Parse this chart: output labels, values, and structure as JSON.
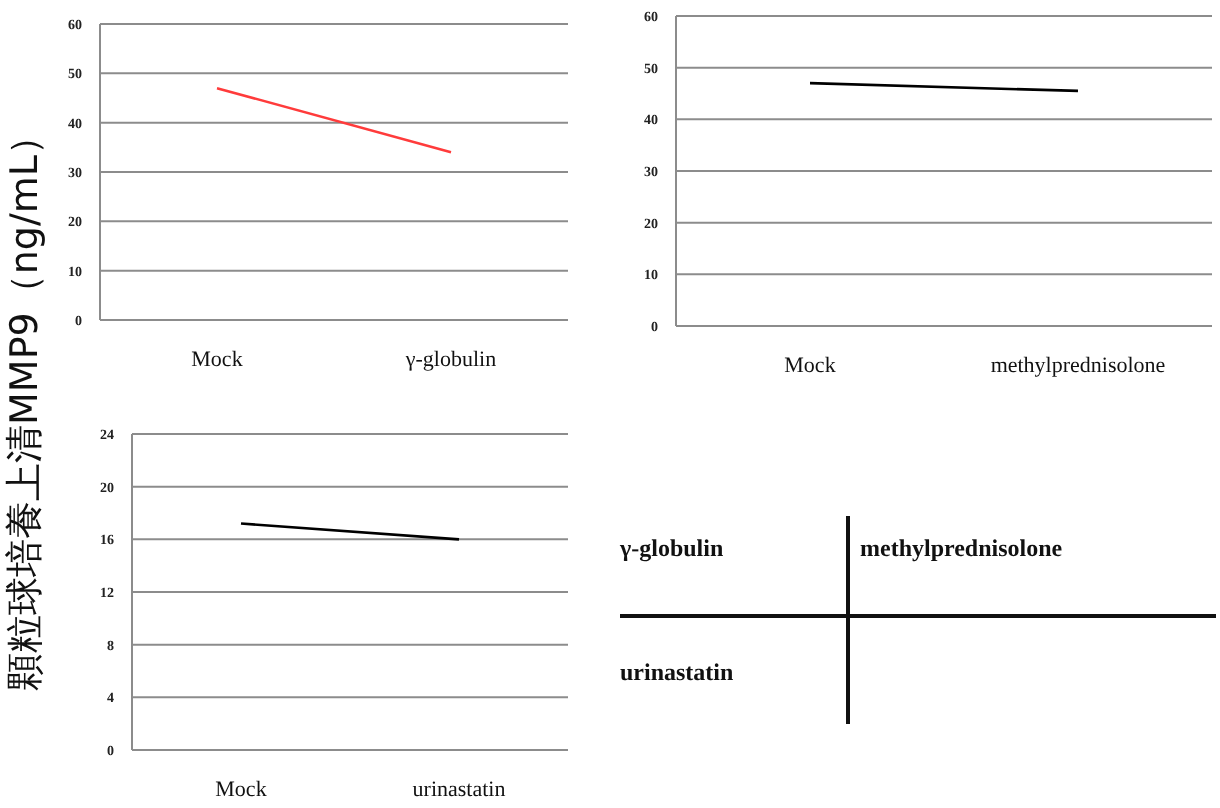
{
  "chart_data": [
    {
      "type": "line",
      "ylabel": "顆粒球培養上清MMP9（ng/mL）",
      "categories": [
        "Mock",
        "γ-globulin"
      ],
      "series": [
        {
          "color": "#ff3b3b",
          "values": [
            47,
            34
          ]
        }
      ],
      "ylim": [
        0,
        60
      ],
      "yticks": [
        0,
        10,
        20,
        30,
        40,
        50,
        60
      ],
      "grid": "y",
      "marker": "none"
    },
    {
      "type": "line",
      "categories": [
        "Mock",
        "methylprednisolone"
      ],
      "series": [
        {
          "color": "#000000",
          "values": [
            47,
            45.5
          ]
        }
      ],
      "ylim": [
        0,
        60
      ],
      "yticks": [
        0,
        10,
        20,
        30,
        40,
        50,
        60
      ],
      "grid": "y",
      "marker": "none"
    },
    {
      "type": "line",
      "categories": [
        "Mock",
        "urinastatin"
      ],
      "series": [
        {
          "color": "#000000",
          "values": [
            17.2,
            16
          ]
        }
      ],
      "ylim": [
        0,
        24
      ],
      "yticks": [
        0,
        4,
        8,
        12,
        16,
        20,
        24
      ],
      "grid": "y",
      "marker": "none"
    },
    {
      "type": "other",
      "annotations": [
        "γ-globulin",
        "methylprednisolone",
        "urinastatin"
      ]
    }
  ]
}
